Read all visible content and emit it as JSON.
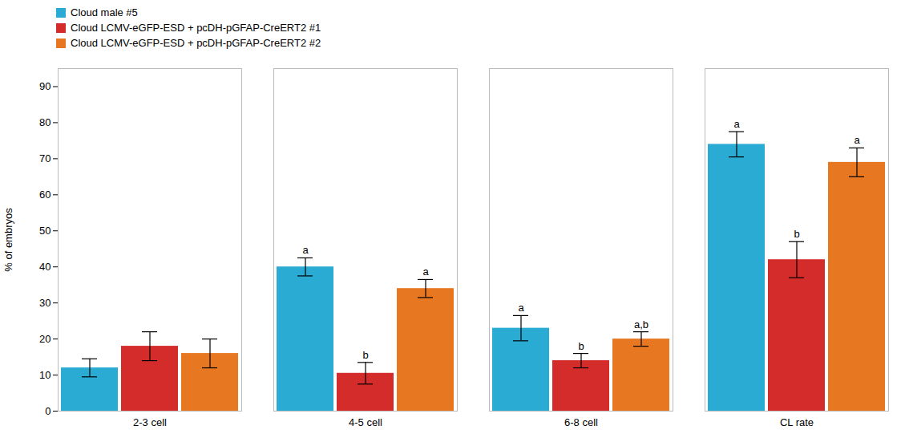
{
  "chart_data": {
    "type": "bar",
    "categories": [
      "2-3 cell",
      "4-5 cell",
      "6-8 cell",
      "CL rate"
    ],
    "series": [
      {
        "name": "Cloud male #5",
        "color": "#29ABD4",
        "values": [
          12,
          40,
          23,
          74
        ],
        "errors": [
          2.5,
          2.5,
          3.5,
          3.5
        ],
        "significance_labels": [
          null,
          "a",
          "a",
          "a"
        ]
      },
      {
        "name": "Cloud LCMV-eGFP-ESD + pcDH-pGFAP-CreERT2 #1",
        "color": "#D42B2B",
        "values": [
          18,
          10.5,
          14,
          42
        ],
        "errors": [
          4,
          3,
          2,
          5
        ],
        "significance_labels": [
          null,
          "b",
          "b",
          "b"
        ]
      },
      {
        "name": "Cloud LCMV-eGFP-ESD + pcDH-pGFAP-CreERT2 #2",
        "color": "#E87722",
        "values": [
          16,
          34,
          20,
          69
        ],
        "errors": [
          4,
          2.5,
          2,
          4
        ],
        "significance_labels": [
          null,
          "a",
          "a,b",
          "a"
        ]
      }
    ],
    "ylabel": "% of embryos",
    "ylim": [
      0,
      95
    ],
    "yticks": [
      0,
      10,
      20,
      30,
      40,
      50,
      60,
      70,
      80,
      90
    ],
    "grid": false,
    "legend": "upper left"
  }
}
